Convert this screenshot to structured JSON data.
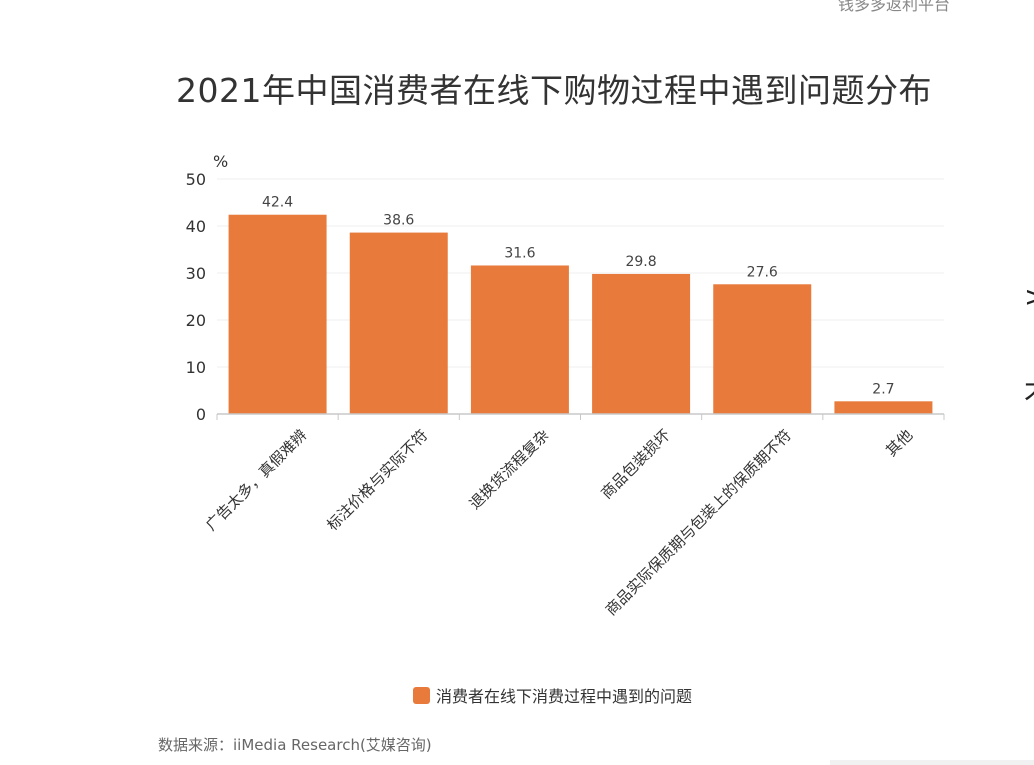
{
  "watermark": "钱多多返利平台",
  "source": "数据来源：iiMedia Research(艾媒咨询)",
  "accent_color": "#e87b3b",
  "side_fragments": [
    ">",
    "才"
  ],
  "chart_data": {
    "type": "bar",
    "title": "2021年中国消费者在线下购物过程中遇到问题分布",
    "ylabel": "%",
    "xlabel": "",
    "ylim": [
      0,
      50
    ],
    "yticks": [
      0,
      10,
      20,
      30,
      40,
      50
    ],
    "grid": true,
    "legend_position": "bottom",
    "categories": [
      "广告太多，真假难辨",
      "标注价格与实际不符",
      "退换货流程复杂",
      "商品包装损坏",
      "商品实际保质期与包装上的保质期不符",
      "其他"
    ],
    "series": [
      {
        "name": "消费者在线下消费过程中遇到的问题",
        "values": [
          42.4,
          38.6,
          31.6,
          29.8,
          27.6,
          2.7
        ],
        "color": "#e87b3b"
      }
    ]
  }
}
